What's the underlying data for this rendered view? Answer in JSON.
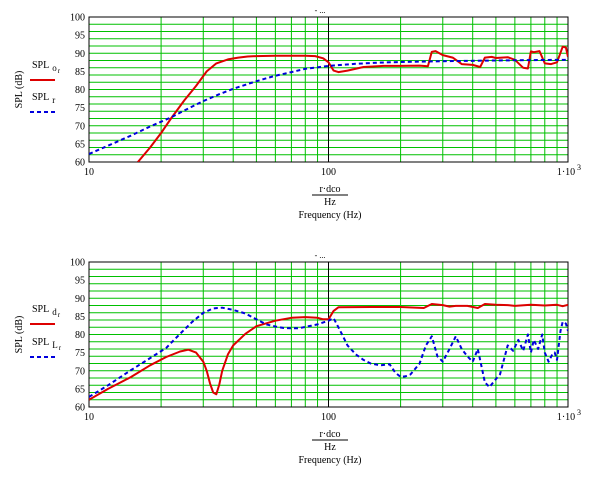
{
  "colors": {
    "grid": "#00c000",
    "series_red": "#dd0000",
    "series_blue": "#0000dd",
    "frame": "#000000"
  },
  "chart_data": [
    {
      "type": "line",
      "x_scale": "log",
      "xlim": [
        10,
        1000
      ],
      "ylim": [
        60,
        100
      ],
      "grid": true,
      "legend_position": "left",
      "top_mark": "- ...",
      "x_ticks": [
        "10",
        "100",
        "1·10"
      ],
      "x_tick_exponent": "3",
      "y_ticks": [
        "100",
        "95",
        "90",
        "85",
        "80",
        "75",
        "70",
        "65",
        "60"
      ],
      "ylabel": "SPL (dB)",
      "xlabel": {
        "numerator": "r·dco",
        "denominator": "Hz",
        "caption": "Frequency (Hz)"
      },
      "series": [
        {
          "name": "SPL",
          "name_sub": "o",
          "name_subsub": "r",
          "color": "#dd0000",
          "style": "solid",
          "x": [
            16,
            18,
            20,
            22,
            25,
            28,
            31,
            34,
            38,
            42,
            46,
            50,
            60,
            70,
            80,
            88,
            95,
            100,
            105,
            110,
            120,
            140,
            170,
            200,
            240,
            260,
            270,
            280,
            300,
            330,
            360,
            400,
            430,
            450,
            480,
            500,
            560,
            600,
            650,
            680,
            700,
            720,
            760,
            800,
            850,
            900,
            950,
            980,
            1000
          ],
          "y": [
            60,
            64,
            68,
            72,
            77,
            81,
            85,
            87.2,
            88.3,
            88.8,
            89.1,
            89.2,
            89.3,
            89.3,
            89.3,
            89.2,
            88.6,
            87.5,
            85.2,
            84.8,
            85.2,
            86.2,
            86.5,
            86.5,
            86.6,
            86.4,
            90.4,
            90.6,
            89.5,
            88.8,
            87.0,
            86.8,
            86.2,
            88.8,
            89.0,
            88.7,
            88.9,
            88.2,
            86.0,
            85.8,
            90.5,
            90.3,
            90.6,
            87.2,
            87.0,
            87.5,
            91.8,
            91.6,
            89.0
          ]
        },
        {
          "name": "SPL",
          "name_sub": "r",
          "name_subsub": "",
          "color": "#0000dd",
          "style": "dashed",
          "x": [
            10,
            12,
            15,
            18,
            22,
            26,
            30,
            35,
            40,
            50,
            60,
            70,
            80,
            90,
            100,
            130,
            160,
            200,
            300,
            500,
            700,
            1000
          ],
          "y": [
            62.2,
            64.5,
            67.3,
            69.8,
            72.3,
            74.8,
            76.8,
            78.7,
            80.2,
            82.3,
            83.8,
            84.8,
            85.7,
            86.1,
            86.5,
            87.1,
            87.4,
            87.6,
            87.8,
            88.0,
            88.1,
            88.2
          ]
        }
      ]
    },
    {
      "type": "line",
      "x_scale": "log",
      "xlim": [
        10,
        1000
      ],
      "ylim": [
        60,
        100
      ],
      "grid": true,
      "legend_position": "left",
      "top_mark": "- ...",
      "x_ticks": [
        "10",
        "100",
        "1·10"
      ],
      "x_tick_exponent": "3",
      "y_ticks": [
        "100",
        "95",
        "90",
        "85",
        "80",
        "75",
        "70",
        "65",
        "60"
      ],
      "ylabel": "SPL (dB)",
      "xlabel": {
        "numerator": "r·dco",
        "denominator": "Hz",
        "caption": "Frequency (Hz)"
      },
      "series": [
        {
          "name": "SPL",
          "name_sub": "d",
          "name_subsub": "r",
          "color": "#dd0000",
          "style": "solid",
          "x": [
            10,
            12,
            15,
            18,
            21,
            24,
            26,
            28,
            30,
            31,
            32,
            33,
            34,
            35,
            36,
            38,
            40,
            45,
            50,
            60,
            70,
            80,
            90,
            95,
            100,
            105,
            110,
            150,
            200,
            250,
            270,
            300,
            320,
            340,
            380,
            420,
            450,
            500,
            560,
            600,
            700,
            800,
            900,
            950,
            1000
          ],
          "y": [
            62.0,
            65.0,
            68.3,
            71.5,
            73.8,
            75.3,
            75.8,
            75.0,
            72.5,
            70.0,
            66.5,
            64.0,
            63.5,
            66.2,
            70.0,
            74.5,
            77.0,
            80.2,
            82.3,
            83.8,
            84.6,
            84.8,
            84.6,
            84.2,
            84.2,
            86.5,
            87.5,
            87.6,
            87.6,
            87.3,
            88.4,
            88.1,
            87.7,
            87.9,
            87.9,
            87.3,
            88.4,
            88.2,
            88.1,
            87.9,
            88.2,
            88.0,
            88.2,
            87.8,
            88.2
          ]
        },
        {
          "name": "SPL",
          "name_sub": "L",
          "name_subsub": "r",
          "color": "#0000dd",
          "style": "dashed",
          "x": [
            10,
            12,
            15,
            18,
            21,
            24,
            27,
            30,
            33,
            36,
            40,
            45,
            50,
            55,
            60,
            65,
            70,
            75,
            80,
            90,
            100,
            105,
            110,
            115,
            120,
            130,
            140,
            150,
            165,
            180,
            190,
            200,
            210,
            220,
            240,
            255,
            270,
            285,
            300,
            320,
            340,
            360,
            380,
            400,
            420,
            450,
            470,
            490,
            520,
            560,
            590,
            620,
            650,
            680,
            700,
            720,
            750,
            780,
            800,
            830,
            860,
            880,
            900,
            930,
            950,
            980,
            1000
          ],
          "y": [
            62.8,
            66.0,
            70.2,
            73.5,
            76.3,
            80.2,
            83.5,
            86.0,
            87.2,
            87.4,
            86.8,
            85.8,
            84.2,
            82.8,
            82.2,
            81.8,
            81.7,
            81.7,
            82.1,
            82.8,
            83.8,
            84.5,
            82.0,
            79.5,
            77.0,
            74.5,
            73.0,
            72.0,
            71.5,
            71.8,
            69.5,
            68.3,
            68.5,
            69.0,
            72.0,
            77.0,
            79.5,
            74.0,
            72.5,
            76.0,
            79.5,
            76.0,
            74.0,
            72.5,
            76.0,
            66.8,
            65.5,
            67.0,
            69.0,
            77.0,
            75.5,
            78.5,
            75.5,
            80.0,
            75.0,
            78.5,
            76.0,
            80.0,
            75.0,
            72.5,
            74.5,
            75.0,
            73.0,
            81.0,
            83.5,
            83.0,
            81.0
          ]
        }
      ]
    }
  ]
}
